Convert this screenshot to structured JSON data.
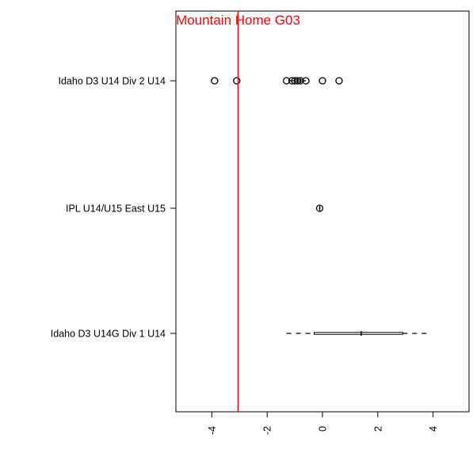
{
  "chart_data": {
    "type": "boxplot",
    "orientation": "horizontal",
    "title": "",
    "xlabel": "",
    "ylabel": "",
    "xlim": [
      -5.3,
      5.3
    ],
    "x_ticks": [
      -4,
      -2,
      0,
      2,
      4
    ],
    "x_tick_labels": [
      "-4",
      "-2",
      "0",
      "2",
      "4"
    ],
    "grid": false,
    "categories": [
      "Idaho D3 U14 Div 2 U14",
      "IPL U14/U15 East U15",
      "Idaho D3 U14G Div 1 U14"
    ],
    "series": [
      {
        "whisker_low": -1.2,
        "q1": -1.0,
        "median": -0.8,
        "q3": -0.7,
        "whisker_high": -0.6,
        "outliers": [
          -3.9,
          -3.1,
          -1.3,
          -1.1,
          -1.0,
          -0.9,
          -0.8,
          -0.6,
          0.0,
          0.6
        ]
      },
      {
        "whisker_low": -0.1,
        "q1": -0.1,
        "median": -0.1,
        "q3": -0.1,
        "whisker_high": -0.1,
        "outliers": [
          -0.1
        ]
      },
      {
        "whisker_low": -1.3,
        "q1": -0.3,
        "median": 1.4,
        "q3": 2.9,
        "whisker_high": 3.9,
        "outliers": []
      }
    ],
    "reference_line": {
      "x": -3.05,
      "label": "Mountain Home G03",
      "color": "#ff0000"
    }
  }
}
